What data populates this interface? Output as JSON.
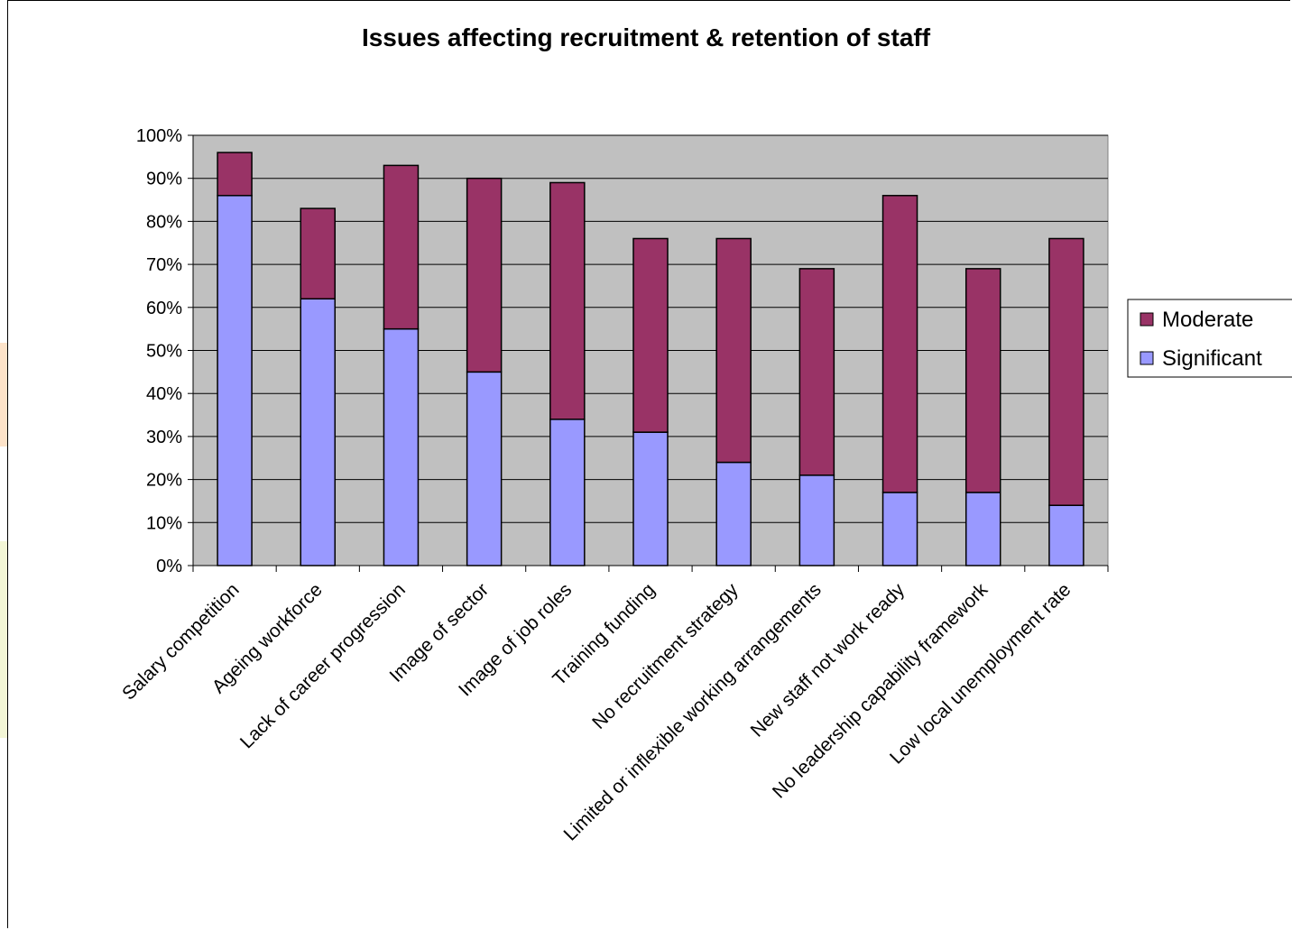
{
  "chart_data": {
    "type": "bar",
    "stacked": true,
    "title": "Issues affecting recruitment & retention of staff",
    "categories": [
      "Salary competition",
      "Ageing workforce",
      "Lack of career progression",
      "Image of sector",
      "Image of job roles",
      "Training funding",
      "No recruitment strategy",
      "Limited or inflexible working arrangements",
      "New staff not work ready",
      "No leadership capability framework",
      "Low local unemployment rate"
    ],
    "series": [
      {
        "name": "Significant",
        "color": "#9999ff",
        "values": [
          86,
          62,
          55,
          45,
          34,
          31,
          24,
          21,
          17,
          17,
          14
        ]
      },
      {
        "name": "Moderate",
        "color": "#993366",
        "values": [
          10,
          21,
          38,
          45,
          55,
          45,
          52,
          48,
          69,
          52,
          62
        ]
      }
    ],
    "ylim": [
      0,
      100
    ],
    "yticks": [
      "0%",
      "10%",
      "20%",
      "30%",
      "40%",
      "50%",
      "60%",
      "70%",
      "80%",
      "90%",
      "100%"
    ],
    "plot_background": "#c0c0c0",
    "grid": true,
    "legend": {
      "position": "right",
      "entries": [
        "Moderate",
        "Significant"
      ]
    }
  }
}
